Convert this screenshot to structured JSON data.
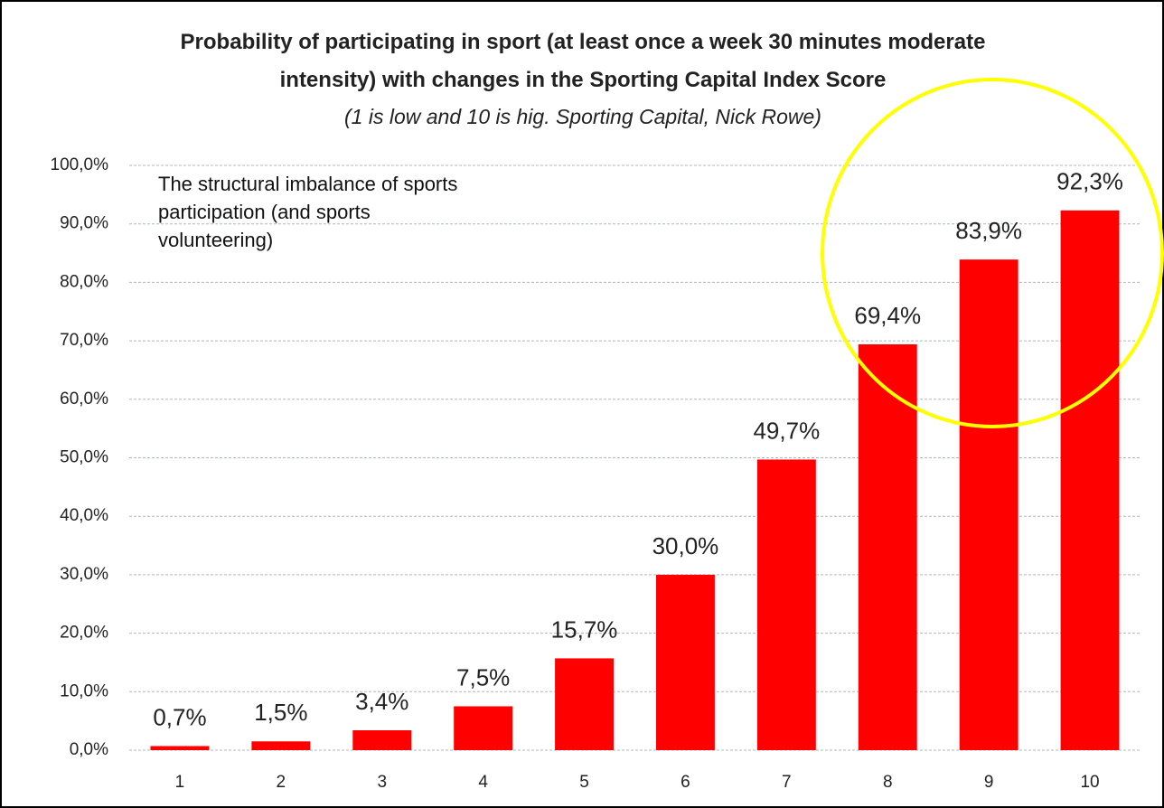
{
  "chart_data": {
    "type": "bar",
    "title": "Probability of participating in sport (at least once a week 30 minutes moderate intensity) with changes in the Sporting Capital Index Score",
    "subtitle": "(1 is low and 10 is hig. Sporting Capital, Nick Rowe)",
    "annotation": "The structural imbalance of sports participation (and sports volunteering)",
    "categories": [
      "1",
      "2",
      "3",
      "4",
      "5",
      "6",
      "7",
      "8",
      "9",
      "10"
    ],
    "values": [
      0.7,
      1.5,
      3.4,
      7.5,
      15.7,
      30.0,
      49.7,
      69.4,
      83.9,
      92.3
    ],
    "value_labels": [
      "0,7%",
      "1,5%",
      "3,4%",
      "7,5%",
      "15,7%",
      "30,0%",
      "49,7%",
      "69,4%",
      "83,9%",
      "92,3%"
    ],
    "color": "#ff0000",
    "ylim": [
      0,
      100
    ],
    "yticks": [
      {
        "value": 0,
        "label": "0,0%"
      },
      {
        "value": 10,
        "label": "10,0%"
      },
      {
        "value": 20,
        "label": "20,0%"
      },
      {
        "value": 30,
        "label": "30,0%"
      },
      {
        "value": 40,
        "label": "40,0%"
      },
      {
        "value": 50,
        "label": "50,0%"
      },
      {
        "value": 60,
        "label": "60,0%"
      },
      {
        "value": 70,
        "label": "70,0%"
      },
      {
        "value": 80,
        "label": "80,0%"
      },
      {
        "value": 90,
        "label": "90,0%"
      },
      {
        "value": 100,
        "label": "100,0%"
      }
    ],
    "grid": true
  }
}
